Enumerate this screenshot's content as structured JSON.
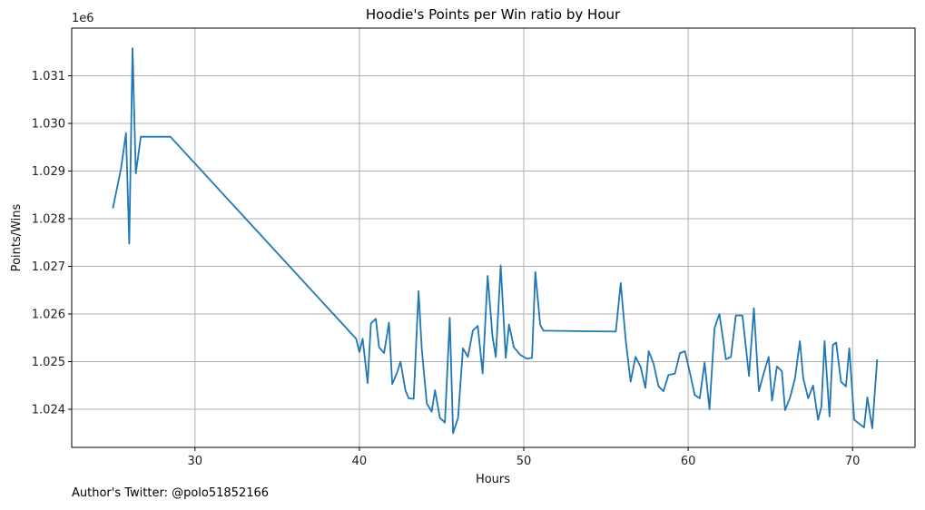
{
  "chart_data": {
    "type": "line",
    "title": "Hoodie's Points per Win ratio by Hour",
    "xlabel": "Hours",
    "ylabel": "Points/Wins",
    "y_offset_label": "1e6",
    "xlim": [
      22.5,
      73.8
    ],
    "ylim": [
      1.0232,
      1.032
    ],
    "xticks": [
      30,
      40,
      50,
      60,
      70
    ],
    "yticks": [
      1.024,
      1.025,
      1.026,
      1.027,
      1.028,
      1.029,
      1.03,
      1.031
    ],
    "ytick_labels": [
      "1.024",
      "1.025",
      "1.026",
      "1.027",
      "1.028",
      "1.029",
      "1.030",
      "1.031"
    ],
    "grid": true,
    "line_color": "#1f77b4",
    "series": [
      {
        "x": [
          25.0,
          25.5,
          25.8,
          26.0,
          26.2,
          26.4,
          26.7,
          27.5,
          28.5,
          39.8,
          40.0,
          40.2,
          40.5,
          40.7,
          41.0,
          41.2,
          41.5,
          41.8,
          42.0,
          42.3,
          42.5,
          42.8,
          43.0,
          43.3,
          43.6,
          43.8,
          44.1,
          44.4,
          44.6,
          44.9,
          45.2,
          45.5,
          45.7,
          46.0,
          46.3,
          46.6,
          46.9,
          47.2,
          47.5,
          47.8,
          48.1,
          48.3,
          48.6,
          48.9,
          49.1,
          49.4,
          49.8,
          50.2,
          50.5,
          50.7,
          51.0,
          51.2,
          55.6,
          55.9,
          56.2,
          56.5,
          56.8,
          57.1,
          57.4,
          57.6,
          57.9,
          58.2,
          58.5,
          58.8,
          59.2,
          59.5,
          59.8,
          60.1,
          60.4,
          60.7,
          61.0,
          61.3,
          61.6,
          61.9,
          62.3,
          62.6,
          62.9,
          63.3,
          63.7,
          64.0,
          64.3,
          64.6,
          64.9,
          65.1,
          65.4,
          65.7,
          65.9,
          66.2,
          66.5,
          66.8,
          67.0,
          67.3,
          67.6,
          67.9,
          68.1,
          68.3,
          68.6,
          68.8,
          69.0,
          69.3,
          69.6,
          69.8,
          70.1,
          70.4,
          70.7,
          70.9,
          71.2,
          71.5
        ],
        "y": [
          1.02822,
          1.02905,
          1.0298,
          1.02748,
          1.03158,
          1.02895,
          1.02972,
          1.02972,
          1.02972,
          1.02548,
          1.0252,
          1.02548,
          1.02455,
          1.0258,
          1.0259,
          1.0253,
          1.02518,
          1.02582,
          1.02453,
          1.02478,
          1.025,
          1.0244,
          1.02423,
          1.02422,
          1.02648,
          1.02525,
          1.02412,
          1.02395,
          1.0244,
          1.02382,
          1.02372,
          1.02592,
          1.0235,
          1.02382,
          1.02528,
          1.0251,
          1.02565,
          1.02575,
          1.02475,
          1.0268,
          1.02552,
          1.0251,
          1.02702,
          1.02508,
          1.02578,
          1.0253,
          1.02514,
          1.02506,
          1.02508,
          1.02688,
          1.02577,
          1.02565,
          1.02563,
          1.02665,
          1.02545,
          1.02458,
          1.0251,
          1.0249,
          1.02445,
          1.02522,
          1.02495,
          1.02448,
          1.02438,
          1.02472,
          1.02475,
          1.02518,
          1.02522,
          1.02478,
          1.0243,
          1.02423,
          1.02498,
          1.024,
          1.0257,
          1.026,
          1.02505,
          1.0251,
          1.02597,
          1.02597,
          1.0247,
          1.02612,
          1.02438,
          1.02476,
          1.0251,
          1.02418,
          1.0249,
          1.0248,
          1.02398,
          1.02425,
          1.02465,
          1.02543,
          1.02465,
          1.02423,
          1.0245,
          1.02378,
          1.02405,
          1.02543,
          1.02385,
          1.02535,
          1.0254,
          1.02458,
          1.02448,
          1.02528,
          1.02378,
          1.0237,
          1.02362,
          1.02425,
          1.0236,
          1.02505
        ]
      }
    ]
  },
  "footer": {
    "text": "Author's Twitter: @polo51852166"
  }
}
